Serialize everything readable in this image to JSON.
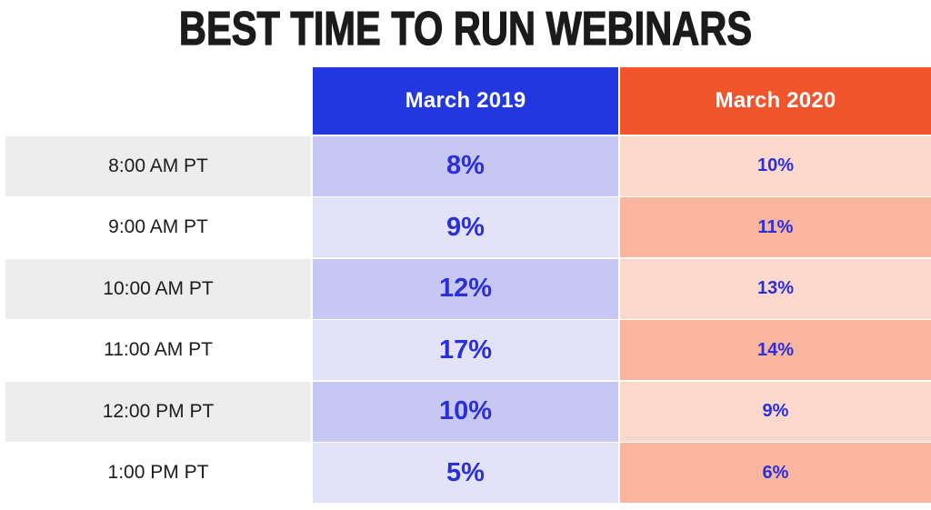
{
  "title": "BEST TIME TO RUN WEBINARS",
  "table": {
    "columns": [
      {
        "label": "March 2019",
        "header_color": "#2337de"
      },
      {
        "label": "March 2020",
        "header_color": "#f0552c"
      }
    ],
    "rows": [
      {
        "time": "8:00 AM PT",
        "march_2019": "8%",
        "march_2020": "10%"
      },
      {
        "time": "9:00 AM PT",
        "march_2019": "9%",
        "march_2020": "11%"
      },
      {
        "time": "10:00 AM PT",
        "march_2019": "12%",
        "march_2020": "13%"
      },
      {
        "time": "11:00 AM PT",
        "march_2019": "17%",
        "march_2020": "14%"
      },
      {
        "time": "12:00 PM PT",
        "march_2019": "10%",
        "march_2020": "9%"
      },
      {
        "time": "1:00 PM PT",
        "march_2019": "5%",
        "march_2020": "6%"
      }
    ]
  },
  "colors": {
    "header_blue": "#2337de",
    "header_orange": "#f0552c",
    "cell_blue_dark": "#c6c7f2",
    "cell_blue_light": "#e2e2f8",
    "cell_peach_light": "#fcd9cc",
    "cell_peach_dark": "#f9b59e",
    "row_stripe_gray": "#ededed",
    "value_text_blue": "#2a2fdb",
    "title_text": "#1b1b1b"
  },
  "chart_data": {
    "type": "table",
    "title": "BEST TIME TO RUN WEBINARS",
    "categories": [
      "8:00 AM PT",
      "9:00 AM PT",
      "10:00 AM PT",
      "11:00 AM PT",
      "12:00 PM PT",
      "1:00 PM PT"
    ],
    "series": [
      {
        "name": "March 2019",
        "values": [
          8,
          9,
          12,
          17,
          10,
          5
        ],
        "unit": "%"
      },
      {
        "name": "March 2020",
        "values": [
          10,
          11,
          13,
          14,
          9,
          6
        ],
        "unit": "%"
      }
    ],
    "legend_position": "column-headers",
    "grid": false
  }
}
